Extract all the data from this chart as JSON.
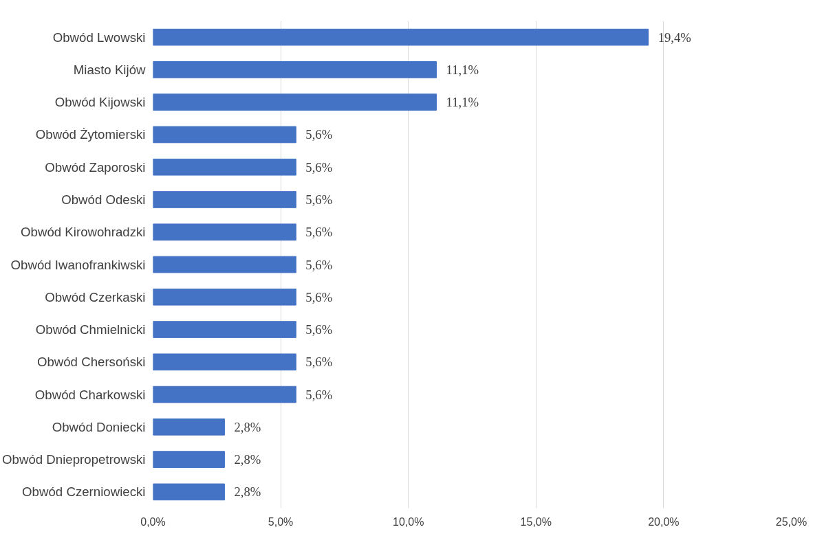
{
  "chart_data": {
    "type": "bar",
    "orientation": "horizontal",
    "categories": [
      "Obwód Lwowski",
      "Miasto Kijów",
      "Obwód Kijowski",
      "Obwód Żytomierski",
      "Obwód Zaporoski",
      "Obwód Odeski",
      "Obwód Kirowohradzki",
      "Obwód Iwanofrankiwski",
      "Obwód Czerkaski",
      "Obwód Chmielnicki",
      "Obwód Chersoński",
      "Obwód Charkowski",
      "Obwód Doniecki",
      "Obwód Dniepropetrowski",
      "Obwód Czerniowiecki"
    ],
    "values": [
      19.4,
      11.1,
      11.1,
      5.6,
      5.6,
      5.6,
      5.6,
      5.6,
      5.6,
      5.6,
      5.6,
      5.6,
      2.8,
      2.8,
      2.8
    ],
    "value_labels": [
      "19,4%",
      "11,1%",
      "11,1%",
      "5,6%",
      "5,6%",
      "5,6%",
      "5,6%",
      "5,6%",
      "5,6%",
      "5,6%",
      "5,6%",
      "5,6%",
      "2,8%",
      "2,8%",
      "2,8%"
    ],
    "color": "#4472c4",
    "xlim": [
      0,
      25
    ],
    "xticks": [
      {
        "value": 0,
        "label": "0,0%"
      },
      {
        "value": 5,
        "label": "5,0%"
      },
      {
        "value": 10,
        "label": "10,0%"
      },
      {
        "value": 15,
        "label": "15,0%"
      },
      {
        "value": 20,
        "label": "20,0%"
      },
      {
        "value": 25,
        "label": "25,0%"
      }
    ],
    "grid": "x"
  }
}
